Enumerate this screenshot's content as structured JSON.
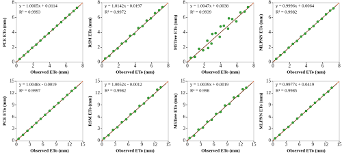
{
  "chart_data": [
    {
      "type": "scatter",
      "xlabel": "Observed  ETo (mm)",
      "ylabel": "PCE ETo (mm)",
      "annotations": [
        "y = 1.0005x + 0.0114",
        "R² = 0.9993"
      ],
      "color": "#34a534",
      "xlim": [
        0,
        8
      ],
      "xticks": [
        0,
        2,
        4,
        6,
        8
      ],
      "ylim": [
        0,
        8
      ],
      "yticks": [
        0,
        2,
        4,
        6,
        8
      ],
      "x": [
        0.4,
        0.9,
        1.4,
        1.9,
        2.4,
        2.9,
        3.4,
        3.9,
        4.4,
        4.9,
        5.4,
        5.9,
        6.4,
        6.9,
        7.3
      ],
      "y": [
        0.42,
        0.92,
        1.41,
        1.93,
        2.38,
        2.92,
        3.43,
        3.88,
        4.42,
        4.93,
        5.38,
        5.93,
        6.41,
        6.88,
        7.32
      ]
    },
    {
      "type": "scatter",
      "xlabel": "Observed  ETo (mm)",
      "ylabel": "RSM ETo (mm)",
      "annotations": [
        "y = 1.0142x - 0.0197",
        "R² = 0.9972"
      ],
      "color": "#34a534",
      "xlim": [
        0,
        8
      ],
      "xticks": [
        0,
        2,
        4,
        6,
        8
      ],
      "ylim": [
        0,
        8
      ],
      "yticks": [
        0,
        2,
        4,
        6,
        8
      ],
      "x": [
        0.4,
        0.9,
        1.4,
        1.9,
        2.4,
        2.9,
        3.4,
        3.9,
        4.4,
        4.9,
        5.4,
        5.9,
        6.4,
        6.9,
        7.3
      ],
      "y": [
        0.5,
        0.85,
        1.5,
        1.85,
        2.5,
        2.8,
        3.55,
        3.8,
        4.6,
        4.85,
        5.6,
        5.9,
        6.6,
        7.0,
        7.4
      ]
    },
    {
      "type": "scatter",
      "xlabel": "Observed  ETo (mm)",
      "ylabel": "M5Tree ETo (mm)",
      "annotations": [
        "y = 1.0047x + 0.0038",
        "R² = 0.9939"
      ],
      "color": "#34a534",
      "xlim": [
        0,
        8
      ],
      "xticks": [
        0,
        2,
        4,
        6,
        8
      ],
      "ylim": [
        0,
        8
      ],
      "yticks": [
        0,
        2,
        4,
        6,
        8
      ],
      "x": [
        0.4,
        0.9,
        1.4,
        1.9,
        2.4,
        2.9,
        3.4,
        3.9,
        4.4,
        4.9,
        5.4,
        5.9,
        6.4,
        6.9,
        7.3,
        3.0,
        4.0,
        5.0,
        2.5
      ],
      "y": [
        0.6,
        0.7,
        1.8,
        1.6,
        2.9,
        2.5,
        3.9,
        3.4,
        4.9,
        4.5,
        5.8,
        5.5,
        6.7,
        6.8,
        7.4,
        3.8,
        4.8,
        5.9,
        1.9
      ]
    },
    {
      "type": "scatter",
      "xlabel": "Observed  ETo (mm)",
      "ylabel": "MLPNN ETo (mm)",
      "annotations": [
        "y = 0.9996x + 0.0064",
        "R² = 0.9982"
      ],
      "color": "#34a534",
      "xlim": [
        0,
        8
      ],
      "xticks": [
        0,
        2,
        4,
        6,
        8
      ],
      "ylim": [
        0,
        8
      ],
      "yticks": [
        0,
        2,
        4,
        6,
        8
      ],
      "x": [
        0.4,
        0.9,
        1.4,
        1.9,
        2.4,
        2.9,
        3.4,
        3.9,
        4.4,
        4.9,
        5.4,
        5.9,
        6.4,
        6.9,
        7.3
      ],
      "y": [
        0.45,
        0.95,
        1.35,
        1.95,
        2.45,
        2.85,
        3.45,
        3.85,
        4.45,
        4.85,
        5.45,
        5.85,
        6.45,
        6.95,
        7.25
      ]
    },
    {
      "type": "scatter",
      "xlabel": "Observed  ETo (mm)",
      "ylabel": "PCE ETo (mm)",
      "annotations": [
        "y = 1.0048x - 0.0019",
        "R² = 0.9997"
      ],
      "color": "#34a534",
      "xlim": [
        0,
        15
      ],
      "xticks": [
        0,
        3,
        6,
        9,
        12,
        15
      ],
      "ylim": [
        0,
        15
      ],
      "yticks": [
        0,
        3,
        6,
        9,
        12,
        15
      ],
      "x": [
        0.5,
        1.5,
        2.5,
        3.5,
        4.5,
        5.5,
        6.5,
        7.5,
        8.5,
        9.5,
        10.5,
        11.5,
        12.5,
        13.3
      ],
      "y": [
        0.5,
        1.5,
        2.52,
        3.5,
        4.52,
        5.53,
        6.53,
        7.54,
        8.55,
        9.55,
        10.55,
        11.56,
        12.56,
        13.37
      ]
    },
    {
      "type": "scatter",
      "xlabel": "Observed  ETo (mm)",
      "ylabel": "RSM ETo (mm)",
      "annotations": [
        "y = 1.0052x - 0.0012",
        "R² = 0.9982"
      ],
      "color": "#34a534",
      "xlim": [
        0,
        15
      ],
      "xticks": [
        0,
        3,
        6,
        9,
        12,
        15
      ],
      "ylim": [
        0,
        15
      ],
      "yticks": [
        0,
        3,
        6,
        9,
        12,
        15
      ],
      "x": [
        0.5,
        1.5,
        2.5,
        3.5,
        4.5,
        5.5,
        6.5,
        7.5,
        8.5,
        9.5,
        10.5,
        11.5,
        12.5,
        13.3
      ],
      "y": [
        0.6,
        1.4,
        2.7,
        3.4,
        4.7,
        5.4,
        6.7,
        7.4,
        8.8,
        9.4,
        10.8,
        11.4,
        12.9,
        13.5
      ]
    },
    {
      "type": "scatter",
      "xlabel": "Observed  ETo (mm)",
      "ylabel": "M5Tree ETo (mm)",
      "annotations": [
        "y = 1.0039x + 0.0019",
        "R² = 0.998"
      ],
      "color": "#34a534",
      "xlim": [
        0,
        15
      ],
      "xticks": [
        0,
        3,
        6,
        9,
        12,
        15
      ],
      "ylim": [
        0,
        15
      ],
      "yticks": [
        0,
        3,
        6,
        9,
        12,
        15
      ],
      "x": [
        0.5,
        1.5,
        2.5,
        3.5,
        4.5,
        5.5,
        6.5,
        7.5,
        8.5,
        9.5,
        10.5,
        11.5,
        12.5,
        13.3
      ],
      "y": [
        0.7,
        1.3,
        2.8,
        3.3,
        4.8,
        5.3,
        6.8,
        7.3,
        8.9,
        9.3,
        10.9,
        11.3,
        13.0,
        13.4
      ]
    },
    {
      "type": "scatter",
      "xlabel": "Observed  ETo (mm)",
      "ylabel": "MLPNN ETo (mm)",
      "annotations": [
        "y = 0.9977x + 0.0419",
        "R² = 0.9985"
      ],
      "color": "#34a534",
      "xlim": [
        0,
        15
      ],
      "xticks": [
        0,
        3,
        6,
        9,
        12,
        15
      ],
      "ylim": [
        0,
        15
      ],
      "yticks": [
        0,
        3,
        6,
        9,
        12,
        15
      ],
      "x": [
        0.5,
        1.5,
        2.5,
        3.5,
        4.5,
        5.5,
        6.5,
        7.5,
        8.5,
        9.5,
        10.5,
        11.5,
        12.5,
        13.3
      ],
      "y": [
        0.6,
        1.5,
        2.7,
        3.5,
        4.6,
        5.6,
        6.6,
        7.5,
        8.6,
        9.6,
        10.5,
        11.6,
        12.4,
        13.4
      ]
    }
  ]
}
